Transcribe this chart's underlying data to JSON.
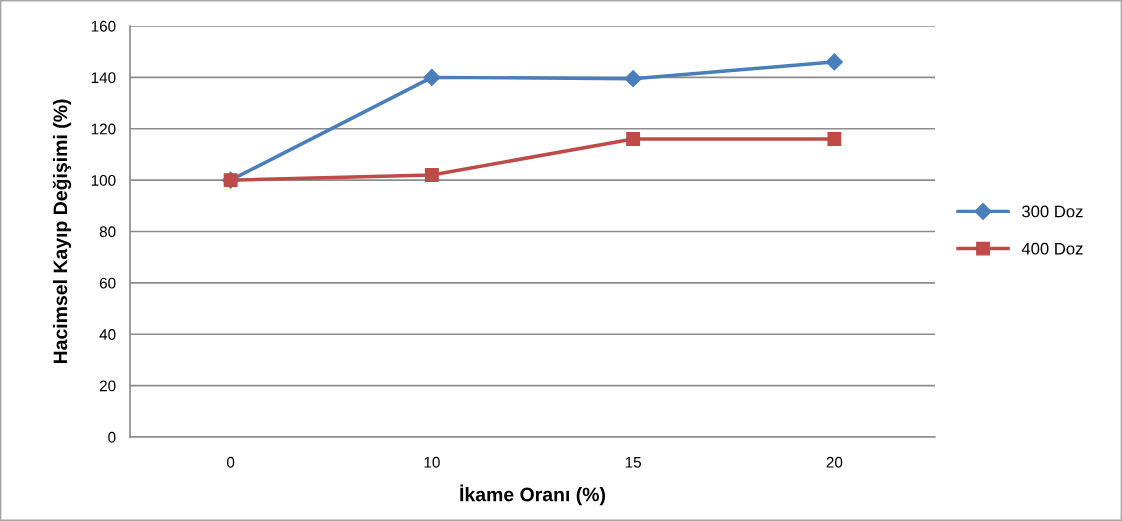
{
  "chart_data": {
    "type": "line",
    "xlabel": "İkame Oranı (%)",
    "ylabel": "Hacimsel Kayıp Değişimi (%)",
    "categories": [
      "0",
      "10",
      "15",
      "20"
    ],
    "series": [
      {
        "name": "300 Doz",
        "color": "#4a7ebb",
        "marker": "diamond",
        "values": [
          100,
          140,
          139.5,
          146
        ]
      },
      {
        "name": "400 Doz",
        "color": "#be4b48",
        "marker": "square",
        "values": [
          100,
          102,
          116,
          116
        ]
      }
    ],
    "ylim": [
      0,
      160
    ],
    "yticks": [
      0,
      20,
      40,
      60,
      80,
      100,
      120,
      140,
      160
    ],
    "grid": "y",
    "legend": "right",
    "line_style": "solid"
  }
}
